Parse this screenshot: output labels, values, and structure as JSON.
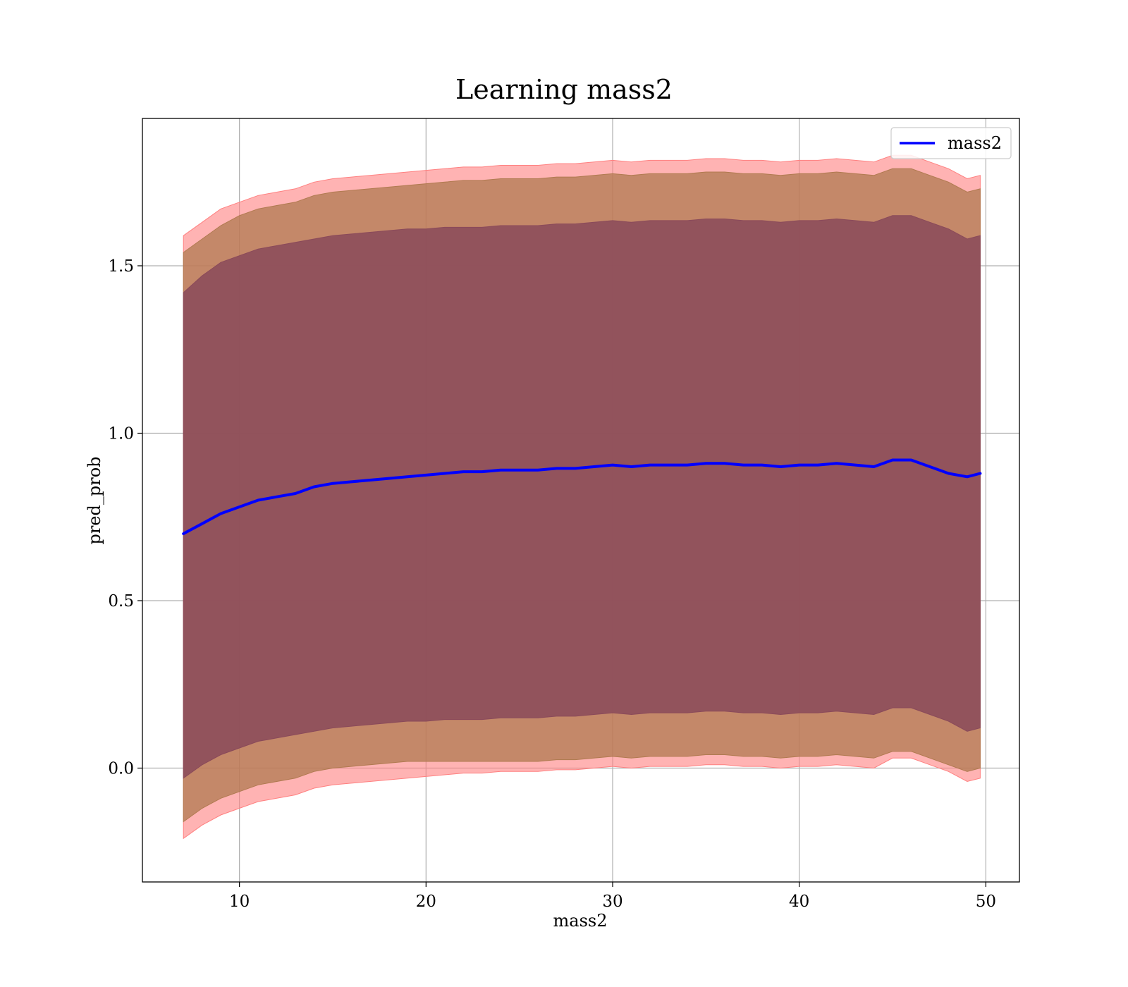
{
  "chart_data": {
    "type": "area",
    "title": "Learning mass2",
    "xlabel": "mass2",
    "ylabel": "pred_prob",
    "xlim": [
      4.8,
      51.8
    ],
    "ylim": [
      -0.34,
      1.94
    ],
    "x_ticks": [
      10,
      20,
      30,
      40,
      50
    ],
    "y_ticks": [
      0.0,
      0.5,
      1.0,
      1.5
    ],
    "grid": true,
    "legend": {
      "position": "top-right",
      "entries": [
        "mass2"
      ]
    },
    "colors": {
      "mean_line": "#0000ff",
      "band_outer": "#ff8080",
      "band_middle": "#b07a50",
      "band_inner": "#8a4a5a"
    },
    "x": [
      7,
      8,
      9,
      10,
      11,
      12,
      13,
      14,
      15,
      16,
      17,
      18,
      19,
      20,
      21,
      22,
      23,
      24,
      25,
      26,
      27,
      28,
      29,
      30,
      31,
      32,
      33,
      34,
      35,
      36,
      37,
      38,
      39,
      40,
      41,
      42,
      43,
      44,
      45,
      46,
      47,
      48,
      49,
      49.7
    ],
    "series": [
      {
        "name": "mass2",
        "role": "mean",
        "values": [
          0.7,
          0.73,
          0.76,
          0.78,
          0.8,
          0.81,
          0.82,
          0.84,
          0.85,
          0.855,
          0.86,
          0.865,
          0.87,
          0.875,
          0.88,
          0.885,
          0.885,
          0.89,
          0.89,
          0.89,
          0.895,
          0.895,
          0.9,
          0.905,
          0.9,
          0.905,
          0.905,
          0.905,
          0.91,
          0.91,
          0.905,
          0.905,
          0.9,
          0.905,
          0.905,
          0.91,
          0.905,
          0.9,
          0.92,
          0.92,
          0.9,
          0.88,
          0.87,
          0.88
        ]
      }
    ],
    "bands": [
      {
        "role": "outer",
        "upper": [
          1.59,
          1.63,
          1.67,
          1.69,
          1.71,
          1.72,
          1.73,
          1.75,
          1.76,
          1.765,
          1.77,
          1.775,
          1.78,
          1.785,
          1.79,
          1.795,
          1.795,
          1.8,
          1.8,
          1.8,
          1.805,
          1.805,
          1.81,
          1.815,
          1.81,
          1.815,
          1.815,
          1.815,
          1.82,
          1.82,
          1.815,
          1.815,
          1.81,
          1.815,
          1.815,
          1.82,
          1.815,
          1.81,
          1.83,
          1.83,
          1.81,
          1.79,
          1.76,
          1.77
        ],
        "lower": [
          -0.21,
          -0.17,
          -0.14,
          -0.12,
          -0.1,
          -0.09,
          -0.08,
          -0.06,
          -0.05,
          -0.045,
          -0.04,
          -0.035,
          -0.03,
          -0.025,
          -0.02,
          -0.015,
          -0.015,
          -0.01,
          -0.01,
          -0.01,
          -0.005,
          -0.005,
          0.0,
          0.005,
          0.0,
          0.005,
          0.005,
          0.005,
          0.01,
          0.01,
          0.005,
          0.005,
          0.0,
          0.005,
          0.005,
          0.01,
          0.005,
          0.0,
          0.03,
          0.03,
          0.01,
          -0.01,
          -0.04,
          -0.03
        ]
      },
      {
        "role": "middle",
        "upper": [
          1.54,
          1.58,
          1.62,
          1.65,
          1.67,
          1.68,
          1.69,
          1.71,
          1.72,
          1.725,
          1.73,
          1.735,
          1.74,
          1.745,
          1.75,
          1.755,
          1.755,
          1.76,
          1.76,
          1.76,
          1.765,
          1.765,
          1.77,
          1.775,
          1.77,
          1.775,
          1.775,
          1.775,
          1.78,
          1.78,
          1.775,
          1.775,
          1.77,
          1.775,
          1.775,
          1.78,
          1.775,
          1.77,
          1.79,
          1.79,
          1.77,
          1.75,
          1.72,
          1.73
        ],
        "lower": [
          -0.16,
          -0.12,
          -0.09,
          -0.07,
          -0.05,
          -0.04,
          -0.03,
          -0.01,
          0.0,
          0.005,
          0.01,
          0.015,
          0.02,
          0.02,
          0.02,
          0.02,
          0.02,
          0.02,
          0.02,
          0.02,
          0.025,
          0.025,
          0.03,
          0.035,
          0.03,
          0.035,
          0.035,
          0.035,
          0.04,
          0.04,
          0.035,
          0.035,
          0.03,
          0.035,
          0.035,
          0.04,
          0.035,
          0.03,
          0.05,
          0.05,
          0.03,
          0.01,
          -0.01,
          0.0
        ]
      },
      {
        "role": "inner",
        "upper": [
          1.42,
          1.47,
          1.51,
          1.53,
          1.55,
          1.56,
          1.57,
          1.58,
          1.59,
          1.595,
          1.6,
          1.605,
          1.61,
          1.61,
          1.615,
          1.615,
          1.615,
          1.62,
          1.62,
          1.62,
          1.625,
          1.625,
          1.63,
          1.635,
          1.63,
          1.635,
          1.635,
          1.635,
          1.64,
          1.64,
          1.635,
          1.635,
          1.63,
          1.635,
          1.635,
          1.64,
          1.635,
          1.63,
          1.65,
          1.65,
          1.63,
          1.61,
          1.58,
          1.59
        ],
        "lower": [
          -0.03,
          0.01,
          0.04,
          0.06,
          0.08,
          0.09,
          0.1,
          0.11,
          0.12,
          0.125,
          0.13,
          0.135,
          0.14,
          0.14,
          0.145,
          0.145,
          0.145,
          0.15,
          0.15,
          0.15,
          0.155,
          0.155,
          0.16,
          0.165,
          0.16,
          0.165,
          0.165,
          0.165,
          0.17,
          0.17,
          0.165,
          0.165,
          0.16,
          0.165,
          0.165,
          0.17,
          0.165,
          0.16,
          0.18,
          0.18,
          0.16,
          0.14,
          0.11,
          0.12
        ]
      }
    ]
  }
}
